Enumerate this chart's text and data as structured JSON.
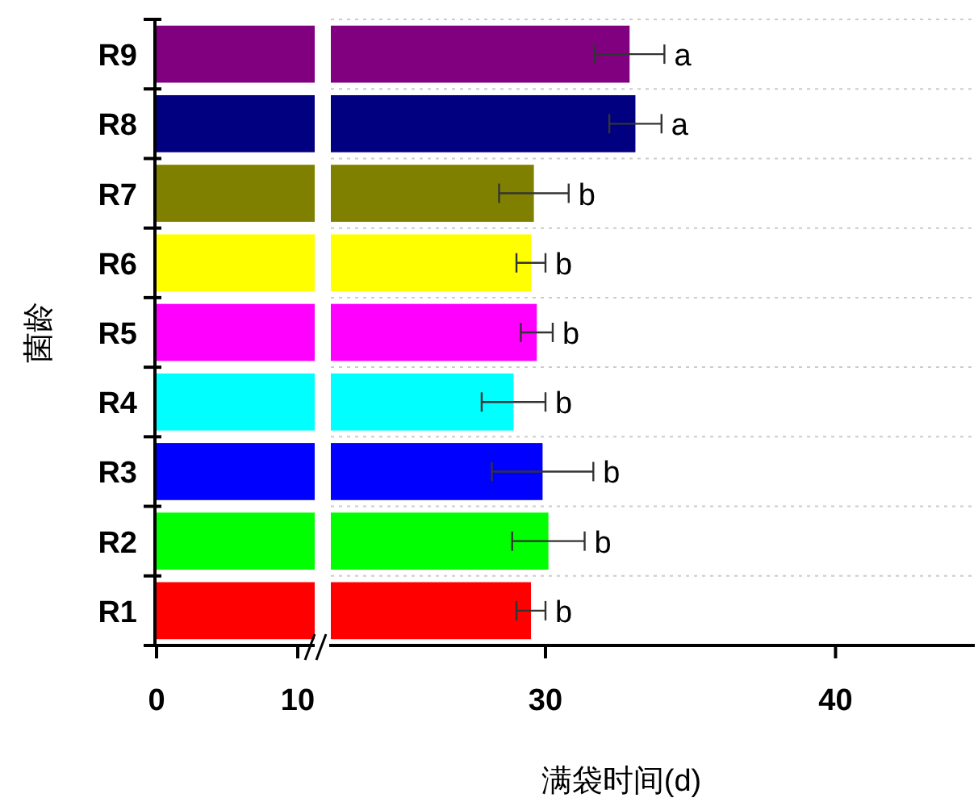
{
  "chart_data": [
    {
      "type": "bar",
      "orientation": "horizontal",
      "ylabel": "菌龄",
      "categories": [
        "R9",
        "R8",
        "R7",
        "R6",
        "R5",
        "R4",
        "R3",
        "R2",
        "R1"
      ],
      "values": [
        11.2,
        11.2,
        11.2,
        11.2,
        11.2,
        11.2,
        11.2,
        11.2,
        11.2
      ],
      "colors": [
        "#800080",
        "#000080",
        "#808000",
        "#ffff00",
        "#ff00ff",
        "#00ffff",
        "#0000ff",
        "#00ff00",
        "#ff0000"
      ],
      "xlim": [
        0,
        11.2
      ],
      "xticks": [
        0,
        10
      ]
    },
    {
      "type": "bar",
      "orientation": "horizontal",
      "xlabel": "满袋时间(d)",
      "categories": [
        "R9",
        "R8",
        "R7",
        "R6",
        "R5",
        "R4",
        "R3",
        "R2",
        "R1"
      ],
      "values": [
        32.9,
        33.1,
        29.6,
        29.5,
        29.7,
        28.9,
        29.9,
        30.1,
        29.5
      ],
      "errors": [
        1.2,
        0.9,
        1.2,
        0.5,
        0.55,
        1.1,
        1.75,
        1.25,
        0.5
      ],
      "colors": [
        "#800080",
        "#000080",
        "#808000",
        "#ffff00",
        "#ff00ff",
        "#00ffff",
        "#0000ff",
        "#00ff00",
        "#ff0000"
      ],
      "xlim": [
        22.6,
        44.8
      ],
      "xticks": [
        30,
        40
      ],
      "tick_labels": "x",
      "grid": "y",
      "annotations": [
        {
          "text": "a",
          "x": 34.1,
          "y": "R9"
        },
        {
          "text": "a",
          "x": 34.0,
          "y": "R8"
        },
        {
          "text": "b",
          "x": 30.8,
          "y": "R7"
        },
        {
          "text": "b",
          "x": 30.0,
          "y": "R6"
        },
        {
          "text": "b",
          "x": 30.25,
          "y": "R5"
        },
        {
          "text": "b",
          "x": 30.0,
          "y": "R4"
        },
        {
          "text": "b",
          "x": 31.65,
          "y": "R3"
        },
        {
          "text": "b",
          "x": 31.35,
          "y": "R2"
        },
        {
          "text": "b",
          "x": 30.0,
          "y": "R1"
        }
      ]
    }
  ]
}
